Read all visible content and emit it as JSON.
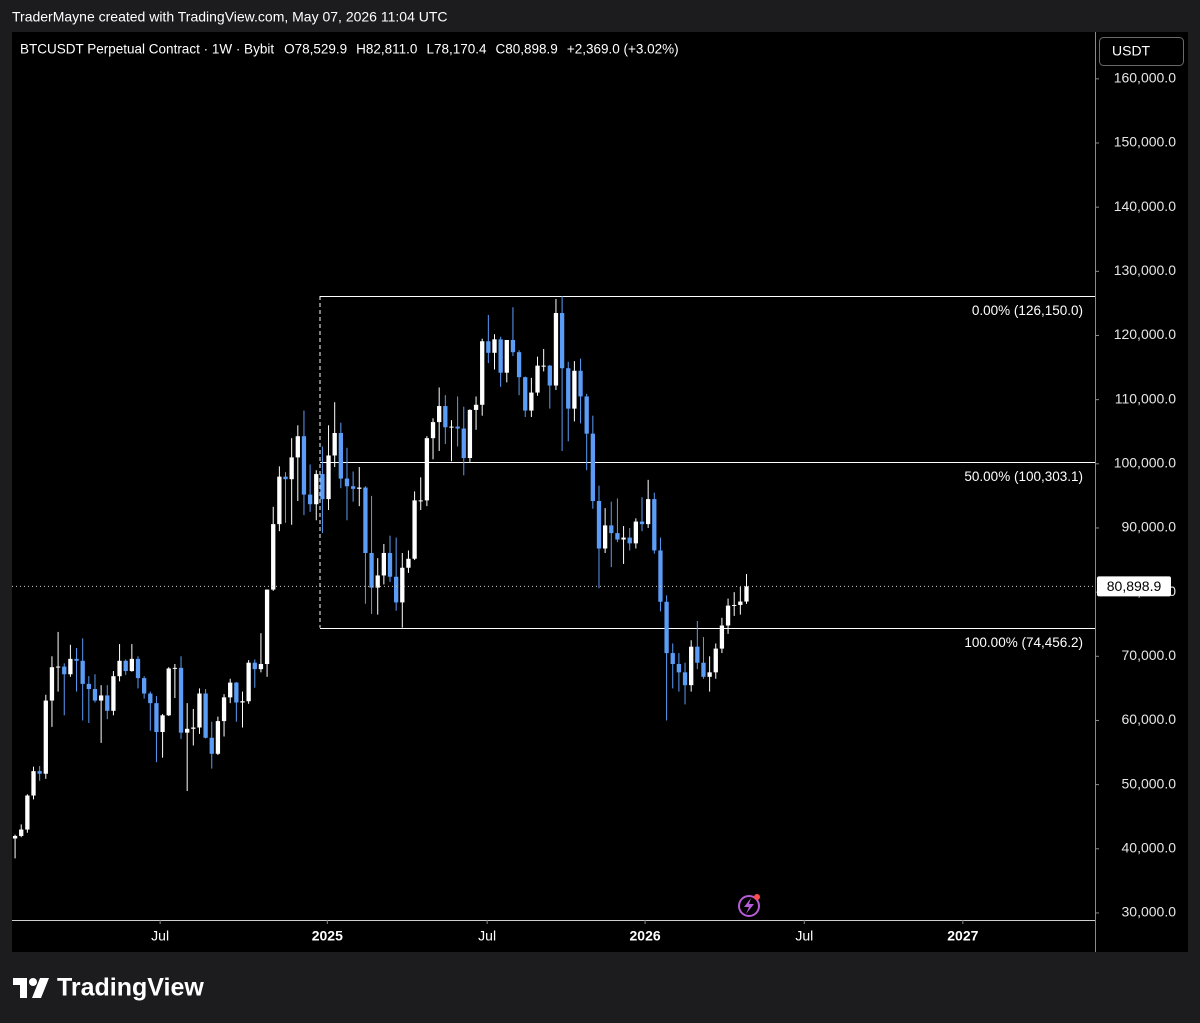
{
  "header": {
    "credit": "TraderMayne created with TradingView.com, May 07, 2026 11:04 UTC"
  },
  "footer": {
    "brand": "TradingView"
  },
  "chart_data": {
    "type": "candlestick",
    "title": "BTCUSDT Perpetual Contract · 1W · Bybit",
    "ohlc_legend": [
      {
        "value": 78529.9,
        "label": "O78,529.9"
      },
      {
        "value": 82811.0,
        "label": "H82,811.0"
      },
      {
        "value": 78170.4,
        "label": "L78,170.4"
      },
      {
        "value": 80898.9,
        "label": "C80,898.9"
      }
    ],
    "change": {
      "value": 2369.0,
      "label": "+2,369.0 (+3.02%)"
    },
    "currency": "USDT",
    "up_color": "#ffffff",
    "down_color": "#5b9cf6",
    "open": [
      41600,
      42000,
      43000,
      48300,
      52100,
      51700,
      63100,
      68300,
      68400,
      67200,
      69600,
      69300,
      65700,
      64900,
      63100,
      63900,
      61500,
      66900,
      69300,
      67700,
      69600,
      66600,
      64200,
      62700,
      58200,
      60800,
      68100,
      68200,
      58100,
      58700,
      58900,
      64200,
      57300,
      54800,
      59900,
      63600,
      65900,
      62800,
      63000,
      69000,
      68000,
      68800,
      80400,
      90600,
      98000,
      97600,
      101000,
      104300,
      95200,
      93700,
      98400,
      94500,
      101300,
      104800,
      97700,
      96500,
      96100,
      96300,
      86100,
      80700,
      82600,
      86100,
      82400,
      78400,
      83800,
      85200,
      94300,
      94300,
      104000,
      106500,
      109000,
      105700,
      105800,
      105500,
      100900,
      108400,
      109200,
      119100,
      117300,
      119400,
      114200,
      119300,
      117400,
      113500,
      108300,
      111100,
      115300,
      115300,
      112200,
      123500,
      114900,
      108600,
      114500,
      110500,
      104700,
      94200,
      86800,
      90400,
      89200,
      88200,
      88500,
      87600,
      91000,
      90600,
      94500,
      86500,
      78500,
      70500,
      68800,
      67500,
      65500,
      71500,
      69000,
      66800,
      67500,
      71200,
      74800,
      77900,
      78000,
      78529.9
    ],
    "high": [
      42200,
      43800,
      48500,
      52800,
      52900,
      64000,
      70000,
      73800,
      68900,
      71800,
      71300,
      72800,
      66900,
      67200,
      65500,
      65500,
      67700,
      71900,
      69500,
      71900,
      70000,
      66900,
      64500,
      63800,
      61000,
      68300,
      68800,
      70000,
      62700,
      61800,
      65000,
      64900,
      59800,
      60600,
      64100,
      66500,
      66000,
      64500,
      69400,
      69500,
      73600,
      80400,
      93300,
      99600,
      98700,
      104000,
      106000,
      108300,
      99900,
      99000,
      102700,
      106000,
      109600,
      106400,
      102500,
      98800,
      99500,
      96500,
      95000,
      85300,
      87500,
      88800,
      88500,
      86100,
      86500,
      95700,
      97900,
      104300,
      107100,
      111900,
      110700,
      106800,
      110500,
      108900,
      108500,
      110500,
      119500,
      123200,
      120200,
      119800,
      119300,
      124400,
      117700,
      113600,
      113400,
      116700,
      117900,
      115400,
      125700,
      126150,
      115900,
      116000,
      116400,
      110900,
      107500,
      96600,
      93100,
      94100,
      94600,
      90300,
      90000,
      91500,
      94800,
      97500,
      95500,
      88500,
      79500,
      72000,
      70500,
      69000,
      72500,
      75500,
      73000,
      70000,
      72000,
      76000,
      79000,
      80000,
      80800,
      82811
    ],
    "low": [
      38500,
      41800,
      42500,
      47700,
      50600,
      50900,
      59000,
      64500,
      60800,
      66800,
      64500,
      60000,
      59600,
      62800,
      56500,
      60200,
      60800,
      66100,
      67100,
      67600,
      65000,
      63400,
      58400,
      53500,
      54200,
      60700,
      63500,
      57100,
      49000,
      56100,
      57900,
      57200,
      52500,
      54600,
      57500,
      62700,
      59800,
      58900,
      62600,
      65100,
      67500,
      66800,
      80200,
      89500,
      90800,
      90500,
      94200,
      92000,
      92500,
      91200,
      89200,
      92800,
      99500,
      96200,
      91200,
      94100,
      93400,
      78200,
      76600,
      76500,
      81200,
      81600,
      77100,
      74456.2,
      83000,
      85000,
      92800,
      93400,
      100700,
      102000,
      103100,
      100400,
      102700,
      98200,
      100300,
      105300,
      107500,
      115700,
      114700,
      112000,
      112700,
      116800,
      110700,
      107300,
      107300,
      110600,
      114400,
      108600,
      111500,
      102000,
      103500,
      106600,
      106300,
      99000,
      93000,
      80600,
      86100,
      83900,
      87800,
      84400,
      86500,
      86800,
      89500,
      90000,
      86000,
      77000,
      60000,
      65000,
      64500,
      62500,
      64500,
      68000,
      66500,
      64500,
      66500,
      70500,
      73500,
      76300,
      76500,
      78170.4
    ],
    "close": [
      42000,
      43000,
      48300,
      52100,
      51700,
      63100,
      68300,
      68400,
      67200,
      69600,
      69300,
      65700,
      64900,
      63100,
      63900,
      61500,
      66900,
      69300,
      67700,
      69600,
      66600,
      64200,
      62700,
      58200,
      60800,
      68100,
      68200,
      58100,
      58700,
      58900,
      64200,
      57300,
      54800,
      59900,
      63600,
      65900,
      62800,
      63000,
      69000,
      68000,
      68800,
      80400,
      90600,
      98000,
      97600,
      101000,
      104300,
      95200,
      93700,
      98400,
      94500,
      101300,
      104800,
      97700,
      96500,
      96100,
      96300,
      86100,
      80700,
      82600,
      86100,
      82400,
      78400,
      83800,
      85200,
      94300,
      94300,
      104000,
      106500,
      109000,
      105700,
      105800,
      105500,
      100900,
      108400,
      109200,
      119100,
      117300,
      119400,
      114200,
      119300,
      117400,
      113500,
      108300,
      111100,
      115300,
      115300,
      112200,
      123500,
      114900,
      108600,
      114500,
      110500,
      104700,
      94200,
      86800,
      90400,
      89200,
      88200,
      88500,
      87600,
      91000,
      90600,
      94500,
      86500,
      78500,
      70500,
      68800,
      67500,
      65500,
      71500,
      69000,
      66800,
      67500,
      71200,
      74800,
      77900,
      78000,
      78529.9,
      80898.9
    ],
    "xlim": [
      -0.5,
      175.7
    ],
    "xticks": [
      {
        "value": 23.6,
        "label": "Jul"
      },
      {
        "value": 50.8,
        "label": "2025"
      },
      {
        "value": 76.8,
        "label": "Jul"
      },
      {
        "value": 102.5,
        "label": "2026"
      },
      {
        "value": 128.4,
        "label": "Jul"
      },
      {
        "value": 154.2,
        "label": "2027"
      }
    ],
    "ylim": [
      28900,
      167300
    ],
    "yticks": [
      {
        "value": 30000,
        "label": "30,000.0"
      },
      {
        "value": 40000,
        "label": "40,000.0"
      },
      {
        "value": 50000,
        "label": "50,000.0"
      },
      {
        "value": 60000,
        "label": "60,000.0"
      },
      {
        "value": 70000,
        "label": "70,000.0"
      },
      {
        "value": 80000,
        "label": "80,000.0"
      },
      {
        "value": 90000,
        "label": "90,000.0"
      },
      {
        "value": 100000,
        "label": "100,000.0"
      },
      {
        "value": 110000,
        "label": "110,000.0"
      },
      {
        "value": 120000,
        "label": "120,000.0"
      },
      {
        "value": 130000,
        "label": "130,000.0"
      },
      {
        "value": 140000,
        "label": "140,000.0"
      },
      {
        "value": 150000,
        "label": "150,000.0"
      },
      {
        "value": 160000,
        "label": "160,000.0"
      }
    ],
    "fib_levels": [
      {
        "value": 126150.0,
        "label": "0.00% (126,150.0)"
      },
      {
        "value": 100303.1,
        "label": "50.00% (100,303.1)"
      },
      {
        "value": 74456.2,
        "label": "100.00% (74,456.2)"
      }
    ],
    "last_price": {
      "value": 80898.9,
      "label": "80,898.9"
    },
    "grid": false
  }
}
